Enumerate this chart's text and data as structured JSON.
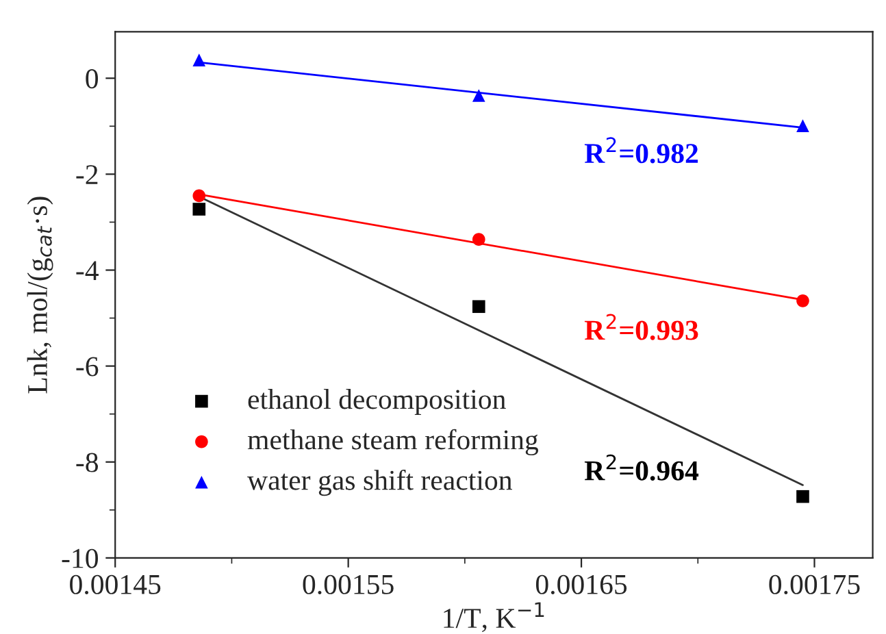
{
  "chart_data": {
    "type": "scatter",
    "xlabel": "1/T, K$^{−1}$",
    "ylabel": "Lnk, mol/(g$_{cat}$·s)",
    "xlim": [
      0.00145,
      0.001775
    ],
    "ylim": [
      -10,
      0.97
    ],
    "xticks": [
      {
        "value": 0.00145,
        "label": "0.00145"
      },
      {
        "value": 0.00155,
        "label": "0.00155"
      },
      {
        "value": 0.00165,
        "label": "0.00165"
      },
      {
        "value": 0.00175,
        "label": "0.00175"
      }
    ],
    "yticks": [
      -10,
      -8,
      -6,
      -4,
      -2,
      0
    ],
    "grid": false,
    "legend": "bottom left",
    "series": [
      {
        "name": "ethanol decomposition",
        "color": "#000000",
        "marker": "square",
        "x": [
          0.001486,
          0.001606,
          0.001745
        ],
        "values": [
          -2.73,
          -4.76,
          -8.72
        ]
      },
      {
        "name": "methane steam reforming",
        "color": "#ff0000",
        "marker": "circle",
        "x": [
          0.001486,
          0.001606,
          0.001745
        ],
        "values": [
          -2.45,
          -3.36,
          -4.64
        ]
      },
      {
        "name": "water gas shift reaction",
        "color": "#0000ff",
        "marker": "triangle",
        "x": [
          0.001486,
          0.001606,
          0.001745
        ],
        "values": [
          0.38,
          -0.36,
          -0.99
        ]
      },
      {
        "type": "line",
        "color": "#333333",
        "x": [
          0.001486,
          0.001745
        ],
        "values": [
          -2.47,
          -8.48
        ]
      },
      {
        "type": "line",
        "color": "#ff0000",
        "x": [
          0.001486,
          0.001745
        ],
        "values": [
          -2.42,
          -4.62
        ]
      },
      {
        "type": "line",
        "color": "#0000ff",
        "x": [
          0.001486,
          0.001745
        ],
        "values": [
          0.33,
          -1.03
        ]
      }
    ],
    "annotations": [
      "R$^{2}$=0.964",
      "R$^{2}$=0.993",
      "R$^{2}$=0.982"
    ]
  }
}
